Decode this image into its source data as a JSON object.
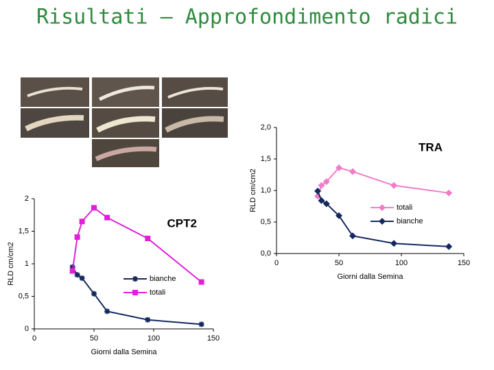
{
  "slide_title": "Risultati – Approfondimento radici",
  "chart_data": [
    {
      "type": "line",
      "annotation": "TRA",
      "x_label": "Giorni dalla Semina",
      "y_label": "RLD cm/cm2",
      "x": [
        33,
        36,
        40,
        50,
        61,
        94,
        138
      ],
      "series": [
        {
          "name": "totali",
          "color": "#f07cc8",
          "marker": "diamond",
          "values": [
            0.91,
            1.08,
            1.14,
            1.36,
            1.3,
            1.08,
            0.96
          ]
        },
        {
          "name": "bianche",
          "color": "#14285e",
          "marker": "diamond",
          "values": [
            0.99,
            0.84,
            0.79,
            0.6,
            0.28,
            0.16,
            0.11
          ]
        }
      ],
      "xlim": [
        0,
        150
      ],
      "xticks": [
        0,
        50,
        100,
        150
      ],
      "ylim": [
        0,
        2
      ],
      "yticks": [
        {
          "value": 0,
          "label": "0,0"
        },
        {
          "value": 0.5,
          "label": "0,5"
        },
        {
          "value": 1,
          "label": "1,0"
        },
        {
          "value": 1.5,
          "label": "1,5"
        },
        {
          "value": 2,
          "label": "2,0"
        }
      ],
      "legend": "right"
    },
    {
      "type": "line",
      "annotation": "CPT2",
      "x_label": "Giorni dalla Semina",
      "y_label": "RLD cm/cm2",
      "x": [
        32,
        36,
        40,
        50,
        61,
        95,
        140
      ],
      "series": [
        {
          "name": "bianche",
          "color": "#14285e",
          "marker": "star",
          "values": [
            0.95,
            0.83,
            0.78,
            0.54,
            0.27,
            0.14,
            0.07
          ]
        },
        {
          "name": "totali",
          "color": "#e020d8",
          "marker": "square",
          "values": [
            0.89,
            1.41,
            1.65,
            1.86,
            1.71,
            1.39,
            0.72
          ]
        }
      ],
      "xlim": [
        0,
        150
      ],
      "xticks": [
        0,
        50,
        100,
        150
      ],
      "ylim": [
        0,
        2
      ],
      "yticks": [
        0,
        {
          "value": 0.5,
          "label": "0,5"
        },
        1,
        {
          "value": 1.5,
          "label": "1,5"
        },
        2
      ],
      "legend": "center"
    }
  ]
}
